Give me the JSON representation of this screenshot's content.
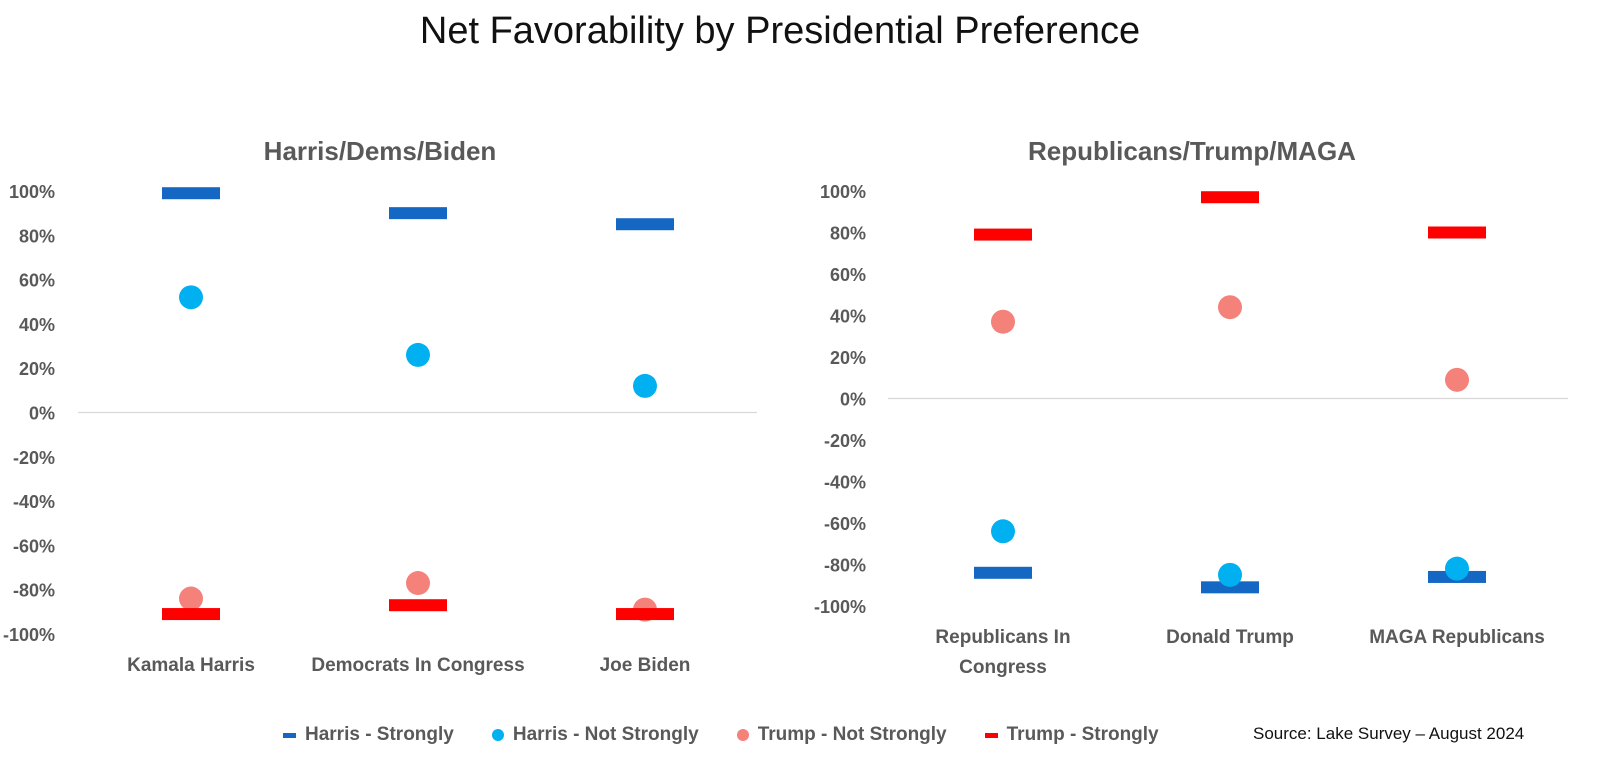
{
  "title": "Net Favorability by Presidential Preference",
  "colors": {
    "harris_strongly": "#1467C2",
    "harris_not_strongly": "#00B0F0",
    "trump_not_strongly": "#F4817A",
    "trump_strongly": "#FF0000"
  },
  "chart_data": [
    {
      "type": "scatter",
      "title": "Harris/Dems/Biden",
      "categories": [
        "Kamala Harris",
        "Democrats In Congress",
        "Joe Biden"
      ],
      "ylim": [
        -100,
        100
      ],
      "yticks": [
        "100%",
        "80%",
        "60%",
        "40%",
        "20%",
        "0%",
        "-20%",
        "-40%",
        "-60%",
        "-80%",
        "-100%"
      ],
      "series": [
        {
          "name": "Harris - Strongly",
          "marker": "dash",
          "values": [
            99,
            90,
            85
          ]
        },
        {
          "name": "Harris - Not Strongly",
          "marker": "circle",
          "values": [
            52,
            26,
            12
          ]
        },
        {
          "name": "Trump - Not Strongly",
          "marker": "circle",
          "values": [
            -84,
            -77,
            -89
          ]
        },
        {
          "name": "Trump - Strongly",
          "marker": "dash",
          "values": [
            -91,
            -87,
            -91
          ]
        }
      ]
    },
    {
      "type": "scatter",
      "title": "Republicans/Trump/MAGA",
      "categories": [
        "Republicans In Congress",
        "Donald Trump",
        "MAGA Republicans"
      ],
      "ylim": [
        -100,
        100
      ],
      "yticks": [
        "100%",
        "80%",
        "60%",
        "40%",
        "20%",
        "0%",
        "-20%",
        "-40%",
        "-60%",
        "-80%",
        "-100%"
      ],
      "series": [
        {
          "name": "Harris - Strongly",
          "marker": "dash",
          "values": [
            -84,
            -91,
            -86
          ]
        },
        {
          "name": "Harris - Not Strongly",
          "marker": "circle",
          "values": [
            -64,
            -85,
            -82
          ]
        },
        {
          "name": "Trump - Not Strongly",
          "marker": "circle",
          "values": [
            37,
            44,
            9
          ]
        },
        {
          "name": "Trump - Strongly",
          "marker": "dash",
          "values": [
            79,
            97,
            80
          ]
        }
      ]
    }
  ],
  "legend": [
    {
      "label": "Harris - Strongly",
      "marker": "dash",
      "color": "#1467C2"
    },
    {
      "label": "Harris - Not Strongly",
      "marker": "circle",
      "color": "#00B0F0"
    },
    {
      "label": "Trump - Not Strongly",
      "marker": "circle",
      "color": "#F4817A"
    },
    {
      "label": "Trump - Strongly",
      "marker": "dash",
      "color": "#FF0000"
    }
  ],
  "source": "Source: Lake Survey – August 2024"
}
